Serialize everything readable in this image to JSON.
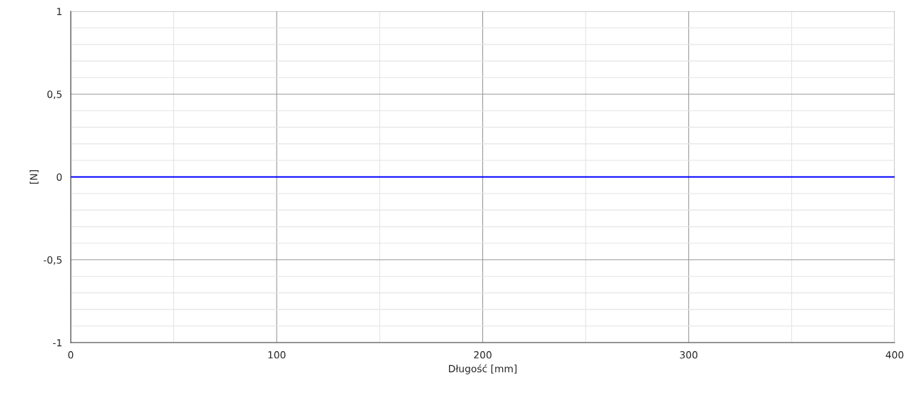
{
  "chart_data": {
    "type": "line",
    "xlabel": "Długość [mm]",
    "ylabel": "[N]",
    "x": [
      0,
      400
    ],
    "series": [
      {
        "color": "#0000ff",
        "values": [
          0,
          0
        ]
      }
    ],
    "xlim": [
      0,
      400
    ],
    "xticks": [
      0,
      {
        "value": 50,
        "label": null
      },
      100,
      {
        "value": 150,
        "label": null
      },
      200,
      {
        "value": 250,
        "label": null
      },
      300,
      {
        "value": 350,
        "label": null
      },
      400
    ],
    "ylim": [
      -1,
      1
    ],
    "yticks": [
      -1,
      {
        "value": -0.9,
        "label": null
      },
      {
        "value": -0.8,
        "label": null
      },
      {
        "value": -0.7,
        "label": null
      },
      {
        "value": -0.6,
        "label": null
      },
      {
        "value": -0.5,
        "label": "-0,5"
      },
      {
        "value": -0.4,
        "label": null
      },
      {
        "value": -0.3,
        "label": null
      },
      {
        "value": -0.2,
        "label": null
      },
      {
        "value": -0.1,
        "label": null
      },
      0,
      {
        "value": 0.1,
        "label": null
      },
      {
        "value": 0.2,
        "label": null
      },
      {
        "value": 0.3,
        "label": null
      },
      {
        "value": 0.4,
        "label": null
      },
      {
        "value": 0.5,
        "label": "0,5"
      },
      {
        "value": 0.6,
        "label": null
      },
      {
        "value": 0.7,
        "label": null
      },
      {
        "value": 0.8,
        "label": null
      },
      {
        "value": 0.9,
        "label": null
      },
      1
    ],
    "grid": true,
    "marker": "none",
    "line_style": "solid",
    "legend": false
  }
}
